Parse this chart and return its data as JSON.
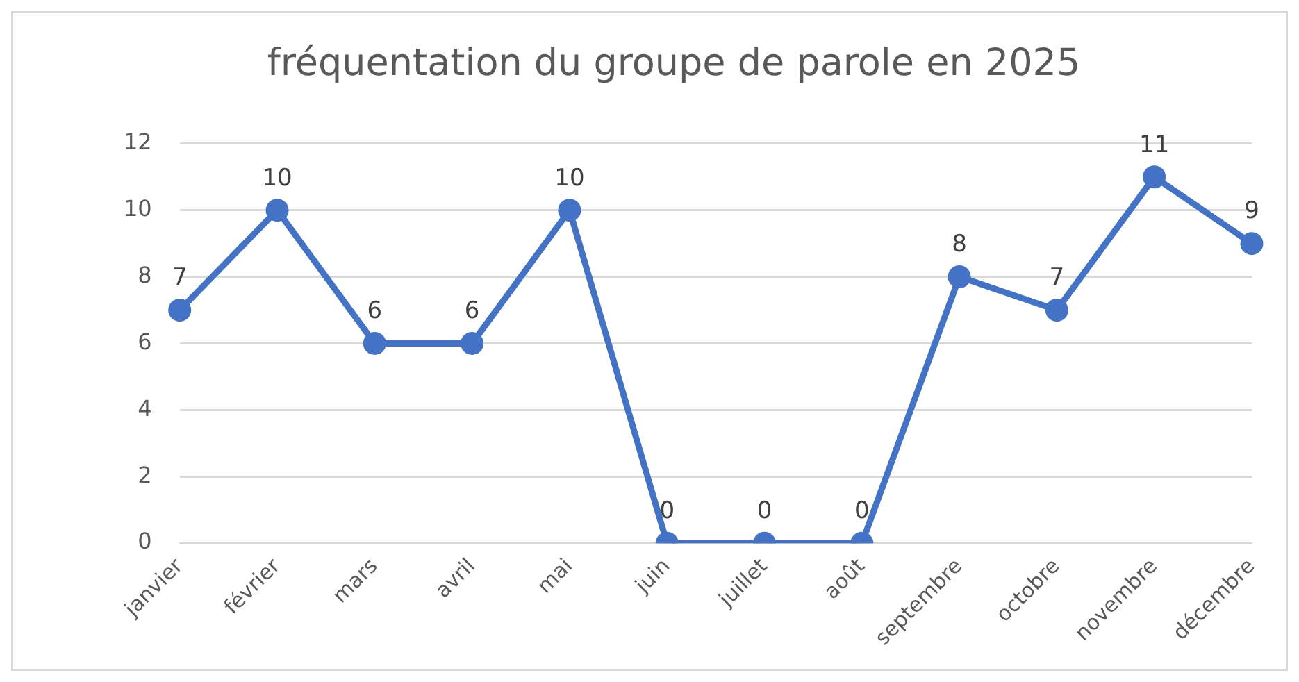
{
  "chart_data": {
    "type": "line",
    "title": "fréquentation du groupe de parole en 2025",
    "categories": [
      "janvier",
      "février",
      "mars",
      "avril",
      "mai",
      "juin",
      "juillet",
      "août",
      "septembre",
      "octobre",
      "novembre",
      "décembre"
    ],
    "series": [
      {
        "color": "#4472c4",
        "values": [
          7,
          10,
          6,
          6,
          10,
          0,
          0,
          0,
          8,
          7,
          11,
          9
        ]
      }
    ],
    "ylim": [
      0,
      12
    ],
    "yticks": [
      0,
      2,
      4,
      6,
      8,
      10,
      12
    ],
    "grid": "y",
    "legend": false,
    "marker": "circle",
    "line_style": "solid",
    "data_labels": true
  }
}
